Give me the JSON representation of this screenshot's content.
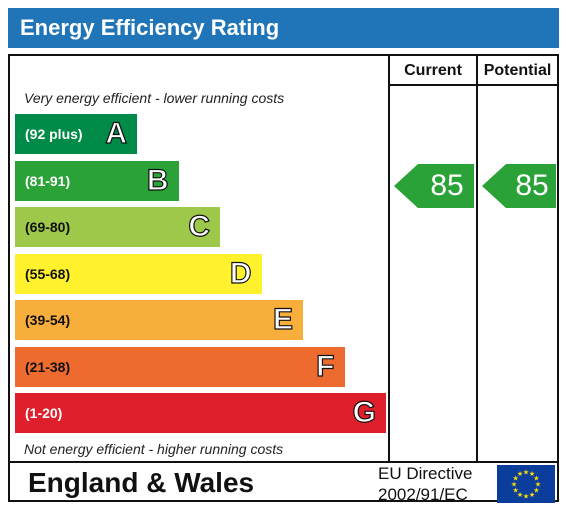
{
  "header": {
    "title": "Energy Efficiency Rating"
  },
  "columns": {
    "current": "Current",
    "potential": "Potential"
  },
  "notes": {
    "top": "Very energy efficient - lower running costs",
    "bottom": "Not energy efficient - higher running costs"
  },
  "bands": [
    {
      "range": "(92 plus)",
      "letter": "A",
      "color": "#008a47",
      "text_color": "#ffffff"
    },
    {
      "range": "(81-91)",
      "letter": "B",
      "color": "#2aa238",
      "text_color": "#ffffff"
    },
    {
      "range": "(69-80)",
      "letter": "C",
      "color": "#9dc84a",
      "text_color": "#111111"
    },
    {
      "range": "(55-68)",
      "letter": "D",
      "color": "#fff22d",
      "text_color": "#111111"
    },
    {
      "range": "(39-54)",
      "letter": "E",
      "color": "#f7ae3b",
      "text_color": "#111111"
    },
    {
      "range": "(21-38)",
      "letter": "F",
      "color": "#ed6b2f",
      "text_color": "#111111"
    },
    {
      "range": "(1-20)",
      "letter": "G",
      "color": "#e01f2c",
      "text_color": "#ffffff"
    }
  ],
  "ratings": {
    "current": {
      "value": "85",
      "color": "#2aa238"
    },
    "potential": {
      "value": "85",
      "color": "#2aa238"
    }
  },
  "footer": {
    "region": "England & Wales",
    "directive_line1": "EU Directive",
    "directive_line2": "2002/91/EC"
  },
  "colors": {
    "header_bg": "#1f75b7",
    "eu_flag_bg": "#0b3d9c",
    "eu_star": "#ffdd00"
  }
}
